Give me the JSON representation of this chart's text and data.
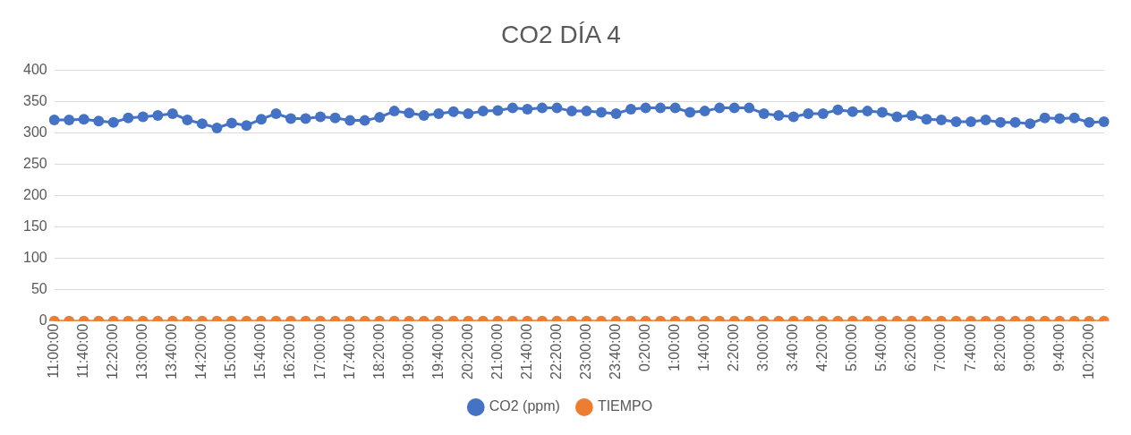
{
  "chart_data": {
    "type": "line",
    "title": "CO2 DÍA 4",
    "categories": [
      "11:00:00",
      null,
      "11:40:00",
      null,
      "12:20:00",
      null,
      "13:00:00",
      null,
      "13:40:00",
      null,
      "14:20:00",
      null,
      "15:00:00",
      null,
      "15:40:00",
      null,
      "16:20:00",
      null,
      "17:00:00",
      null,
      "17:40:00",
      null,
      "18:20:00",
      null,
      "19:00:00",
      null,
      "19:40:00",
      null,
      "20:20:00",
      null,
      "21:00:00",
      null,
      "21:40:00",
      null,
      "22:20:00",
      null,
      "23:00:00",
      null,
      "23:40:00",
      null,
      "0:20:00",
      null,
      "1:00:00",
      null,
      "1:40:00",
      null,
      "2:20:00",
      null,
      "3:00:00",
      null,
      "3:40:00",
      null,
      "4:20:00",
      null,
      "5:00:00",
      null,
      "5:40:00",
      null,
      "6:20:00",
      null,
      "7:00:00",
      null,
      "7:40:00",
      null,
      "8:20:00",
      null,
      "9:00:00",
      null,
      "9:40:00",
      null,
      "10:20:00",
      null
    ],
    "series": [
      {
        "name": "CO2 (ppm)",
        "color": "#4472c4",
        "values": [
          321,
          321,
          322,
          319,
          317,
          324,
          326,
          328,
          331,
          321,
          315,
          308,
          316,
          312,
          322,
          331,
          323,
          323,
          326,
          324,
          320,
          320,
          325,
          335,
          332,
          328,
          331,
          334,
          331,
          335,
          336,
          340,
          338,
          340,
          340,
          335,
          335,
          333,
          331,
          338,
          340,
          340,
          340,
          333,
          335,
          340,
          340,
          340,
          331,
          328,
          326,
          331,
          331,
          337,
          334,
          335,
          333,
          326,
          328,
          322,
          321,
          318,
          318,
          321,
          317,
          317,
          315,
          324,
          323,
          324,
          317,
          318
        ]
      },
      {
        "name": "TIEMPO",
        "color": "#ed7d31",
        "values": [
          0,
          0,
          0,
          0,
          0,
          0,
          0,
          0,
          0,
          0,
          0,
          0,
          0,
          0,
          0,
          0,
          0,
          0,
          0,
          0,
          0,
          0,
          0,
          0,
          0,
          0,
          0,
          0,
          0,
          0,
          0,
          0,
          0,
          0,
          0,
          0,
          0,
          0,
          0,
          0,
          0,
          0,
          0,
          0,
          0,
          0,
          0,
          0,
          0,
          0,
          0,
          0,
          0,
          0,
          0,
          0,
          0,
          0,
          0,
          0,
          0,
          0,
          0,
          0,
          0,
          0,
          0,
          0,
          0,
          0,
          0,
          0
        ]
      }
    ],
    "ylim": [
      0,
      400
    ],
    "yticks": [
      0,
      50,
      100,
      150,
      200,
      250,
      300,
      350,
      400
    ],
    "grid": "y",
    "legend": "bottom",
    "marker": "circle",
    "line_style": "solid"
  }
}
